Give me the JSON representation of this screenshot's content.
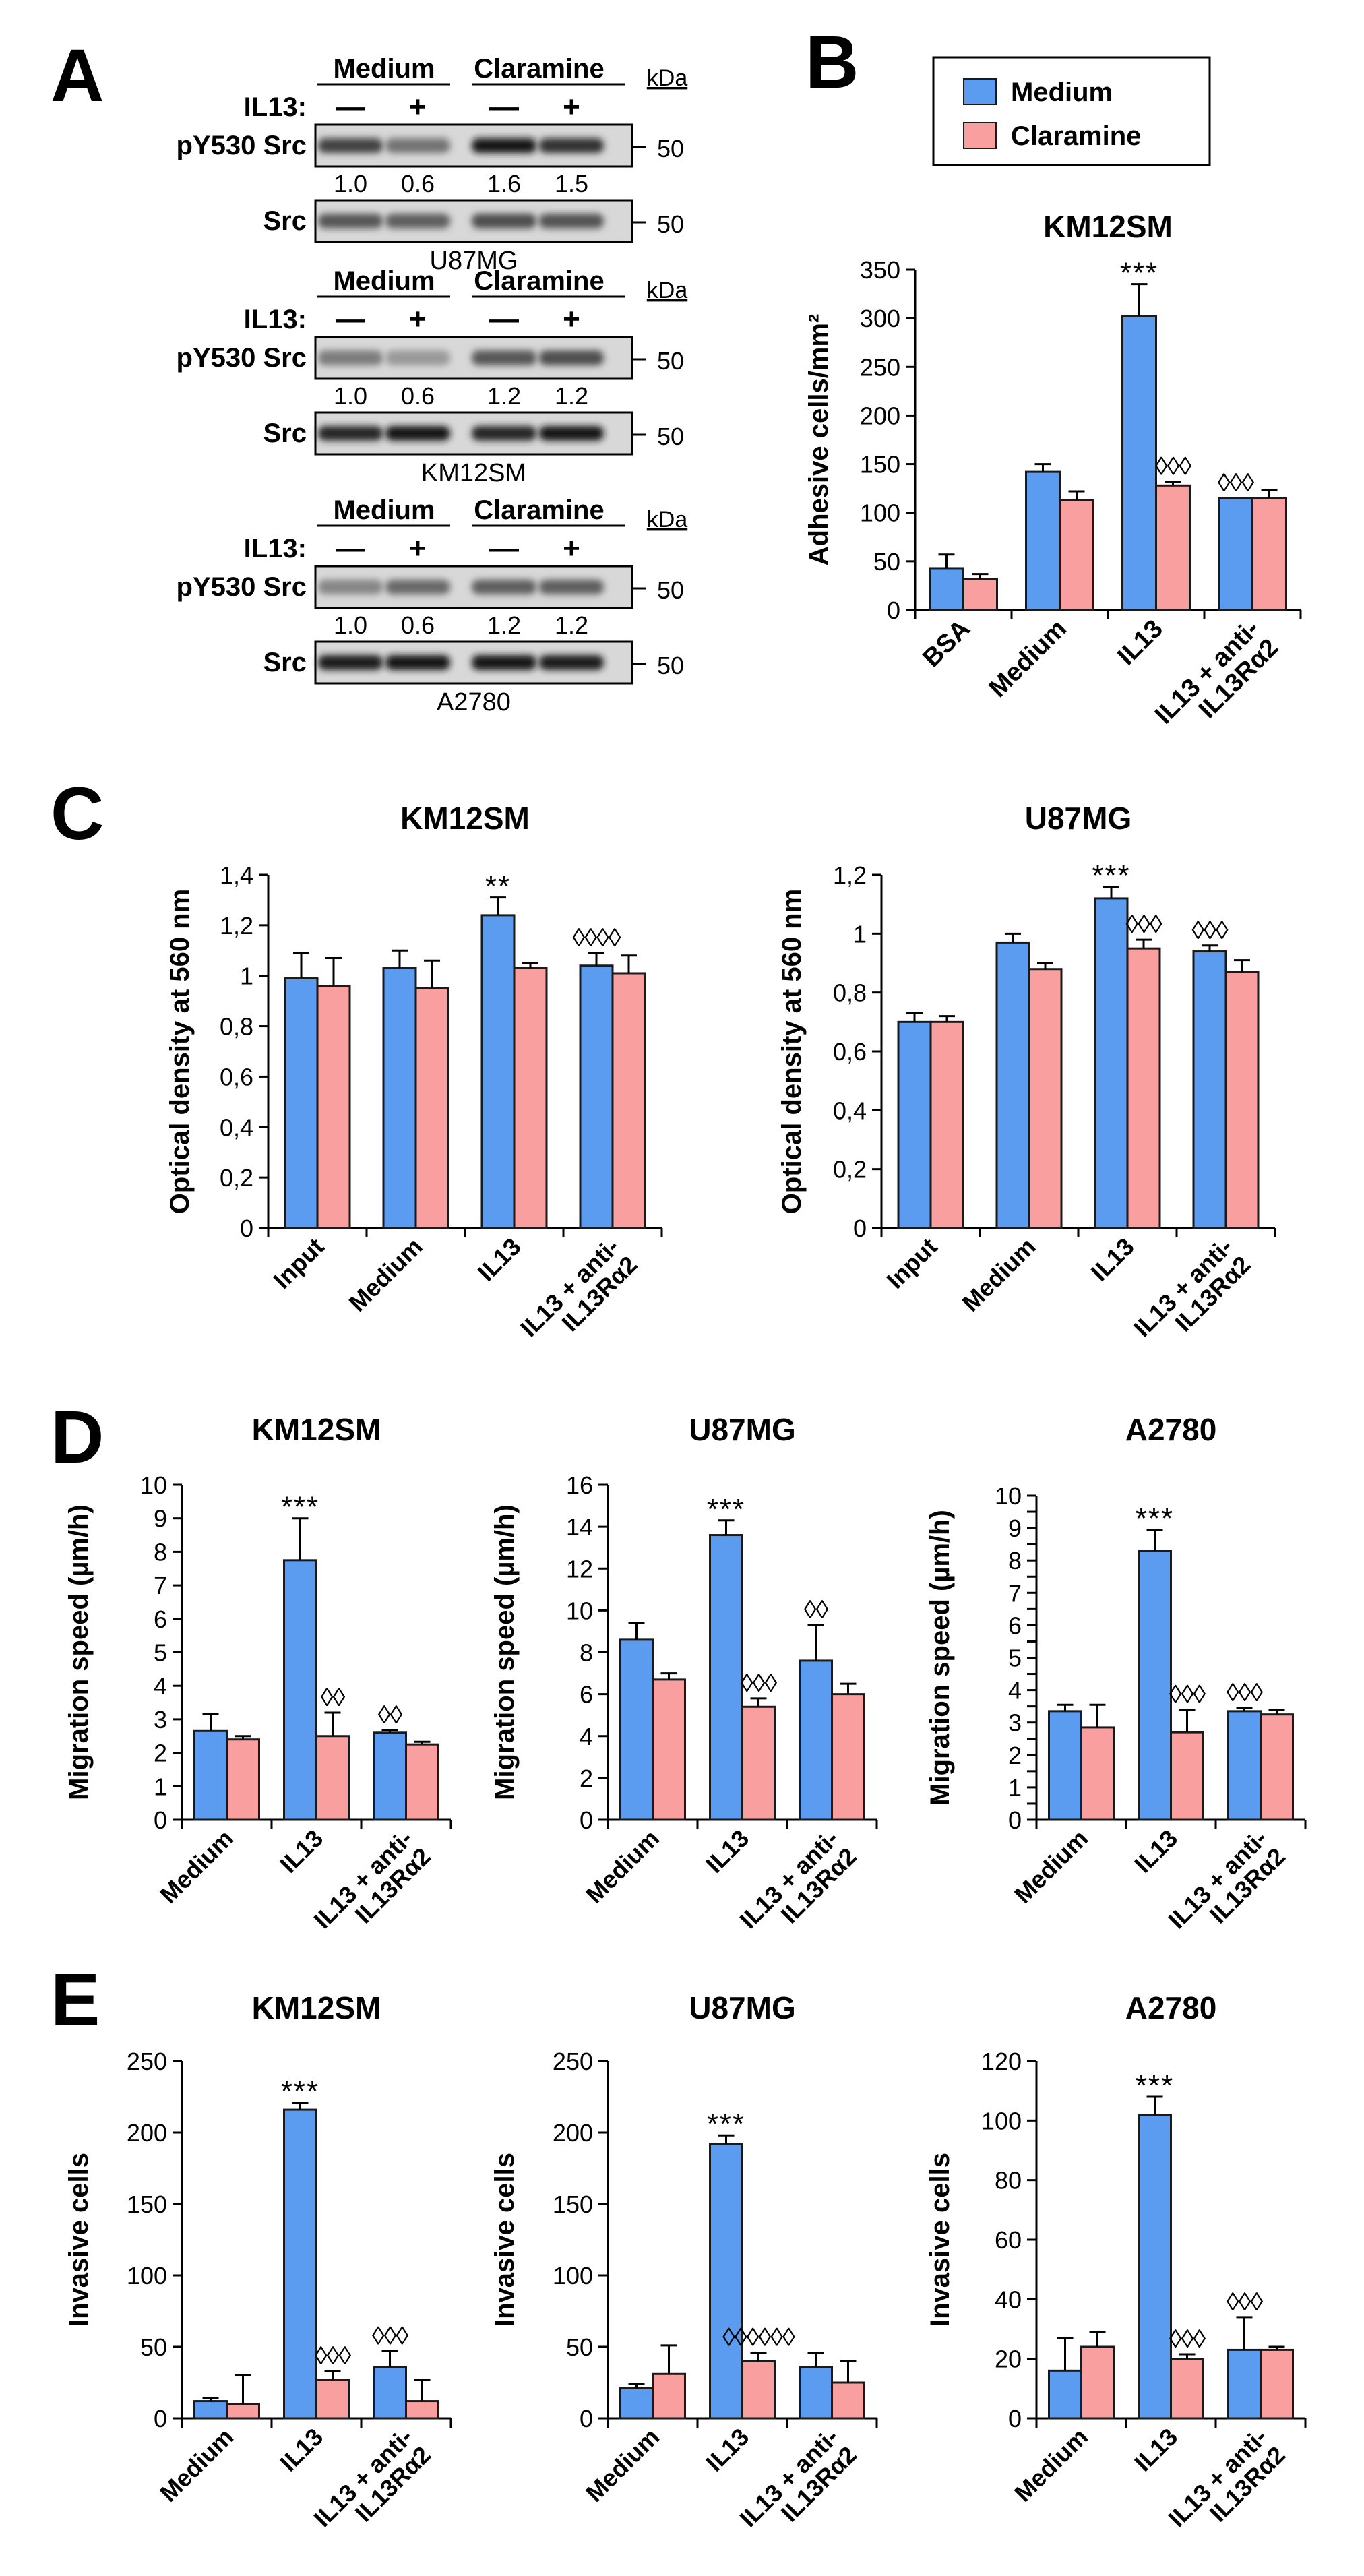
{
  "colors": {
    "medium": "#5b9bf0",
    "claramine": "#f99f9f",
    "outline": "#1a1a1a"
  },
  "panel_labels": [
    "A",
    "B",
    "C",
    "D",
    "E"
  ],
  "legend": {
    "medium": "Medium",
    "claramine": "Claramine"
  },
  "blots": {
    "header_medium": "Medium",
    "header_claramine": "Claramine",
    "kda_label": "kDa",
    "il13_label": "IL13:",
    "lane_marks": [
      "—",
      "+",
      "—",
      "+"
    ],
    "row_label_phospho": "pY530 Src",
    "row_label_total": "Src",
    "marker": "50",
    "groups": [
      {
        "cell_line": "U87MG",
        "ratios": [
          "1.0",
          "0.6",
          "1.6",
          "1.5"
        ]
      },
      {
        "cell_line": "KM12SM",
        "ratios": [
          "1.0",
          "0.6",
          "1.2",
          "1.2"
        ]
      },
      {
        "cell_line": "A2780",
        "ratios": [
          "1.0",
          "0.6",
          "1.2",
          "1.2"
        ]
      }
    ]
  },
  "chart_data": [
    {
      "id": "B",
      "type": "bar",
      "title": "KM12SM",
      "ylabel": "Adhesive cells/mm²",
      "categories": [
        "BSA",
        "Medium",
        "IL13",
        "IL13 + anti-IL13Rα2"
      ],
      "ylim": [
        0,
        350
      ],
      "yticks": [
        "0",
        "50",
        "100",
        "150",
        "200",
        "250",
        "300",
        "350"
      ],
      "series": [
        {
          "name": "Medium",
          "values": [
            43,
            142,
            302,
            115
          ],
          "errors": [
            14,
            8,
            33,
            0
          ]
        },
        {
          "name": "Claramine",
          "values": [
            32,
            113,
            128,
            115
          ],
          "errors": [
            5,
            9,
            4,
            8
          ]
        }
      ],
      "annotations": [
        {
          "category": 2,
          "series": 0,
          "text": "***"
        },
        {
          "category": 2,
          "series": 1,
          "text": "◊◊◊"
        },
        {
          "category": 3,
          "series": 0,
          "text": "◊◊◊"
        }
      ]
    },
    {
      "id": "C1",
      "type": "bar",
      "title": "KM12SM",
      "ylabel": "Optical density at 560 nm",
      "categories": [
        "Input",
        "Medium",
        "IL13",
        "IL13 + anti-IL13Rα2"
      ],
      "ylim": [
        0,
        1.4
      ],
      "yticks": [
        "0",
        "0,2",
        "0,4",
        "0,6",
        "0,8",
        "1",
        "1,2",
        "1,4"
      ],
      "series": [
        {
          "name": "Medium",
          "values": [
            0.99,
            1.03,
            1.24,
            1.04
          ],
          "errors": [
            0.1,
            0.07,
            0.07,
            0.05
          ]
        },
        {
          "name": "Claramine",
          "values": [
            0.96,
            0.95,
            1.03,
            1.01
          ],
          "errors": [
            0.11,
            0.11,
            0.02,
            0.07
          ]
        }
      ],
      "annotations": [
        {
          "category": 2,
          "series": 0,
          "text": "**"
        },
        {
          "category": 3,
          "series": 0,
          "text": "◊◊◊◊"
        }
      ]
    },
    {
      "id": "C2",
      "type": "bar",
      "title": "U87MG",
      "ylabel": "Optical density at 560 nm",
      "categories": [
        "Input",
        "Medium",
        "IL13",
        "IL13 + anti-IL13Rα2"
      ],
      "ylim": [
        0,
        1.2
      ],
      "yticks": [
        "0",
        "0,2",
        "0,4",
        "0,6",
        "0,8",
        "1",
        "1,2"
      ],
      "series": [
        {
          "name": "Medium",
          "values": [
            0.7,
            0.97,
            1.12,
            0.94
          ],
          "errors": [
            0.03,
            0.03,
            0.04,
            0.02
          ]
        },
        {
          "name": "Claramine",
          "values": [
            0.7,
            0.88,
            0.95,
            0.87
          ],
          "errors": [
            0.02,
            0.02,
            0.03,
            0.04
          ]
        }
      ],
      "annotations": [
        {
          "category": 2,
          "series": 0,
          "text": "***"
        },
        {
          "category": 2,
          "series": 1,
          "text": "◊◊◊"
        },
        {
          "category": 3,
          "series": 0,
          "text": "◊◊◊"
        }
      ]
    },
    {
      "id": "D1",
      "type": "bar",
      "title": "KM12SM",
      "ylabel": "Migration speed (µm/h)",
      "categories": [
        "Medium",
        "IL13",
        "IL13 + anti-IL13Rα2"
      ],
      "ylim": [
        0,
        10
      ],
      "yticks": [
        "0",
        "1",
        "2",
        "3",
        "4",
        "5",
        "6",
        "7",
        "8",
        "9",
        "10"
      ],
      "series": [
        {
          "name": "Medium",
          "values": [
            2.65,
            7.75,
            2.6
          ],
          "errors": [
            0.5,
            1.25,
            0.08
          ]
        },
        {
          "name": "Claramine",
          "values": [
            2.4,
            2.5,
            2.25
          ],
          "errors": [
            0.1,
            0.7,
            0.08
          ]
        }
      ],
      "annotations": [
        {
          "category": 1,
          "series": 0,
          "text": "***"
        },
        {
          "category": 1,
          "series": 1,
          "text": "◊◊"
        },
        {
          "category": 2,
          "series": 0,
          "text": "◊◊"
        }
      ]
    },
    {
      "id": "D2",
      "type": "bar",
      "title": "U87MG",
      "ylabel": "Migration speed (µm/h)",
      "categories": [
        "Medium",
        "IL13",
        "IL13 + anti-IL13Rα2"
      ],
      "ylim": [
        0,
        16
      ],
      "yticks": [
        "0",
        "2",
        "4",
        "6",
        "8",
        "10",
        "12",
        "14",
        "16"
      ],
      "series": [
        {
          "name": "Medium",
          "values": [
            8.6,
            13.6,
            7.6
          ],
          "errors": [
            0.8,
            0.7,
            1.7
          ]
        },
        {
          "name": "Claramine",
          "values": [
            6.7,
            5.4,
            6.0
          ],
          "errors": [
            0.3,
            0.4,
            0.5
          ]
        }
      ],
      "annotations": [
        {
          "category": 1,
          "series": 0,
          "text": "***"
        },
        {
          "category": 1,
          "series": 1,
          "text": "◊◊◊"
        },
        {
          "category": 2,
          "series": 0,
          "text": "◊◊"
        }
      ]
    },
    {
      "id": "D3",
      "type": "bar",
      "title": "A2780",
      "ylabel": "Migration speed (µm/h)",
      "categories": [
        "Medium",
        "IL13",
        "IL13 + anti-IL13Rα2"
      ],
      "ylim": [
        0,
        10
      ],
      "yticks": [
        "0",
        "0,5",
        "1",
        "1,5",
        "2",
        "2,5",
        "3",
        "3,5",
        "4",
        "4,5",
        "5",
        "5,5",
        "6",
        "6,5",
        "7",
        "7,5",
        "8",
        "8,5",
        "9",
        "9,5",
        "10"
      ],
      "ytick_labels": [
        "0",
        "1",
        "2",
        "3",
        "4",
        "5",
        "6",
        "7",
        "8",
        "9",
        "10"
      ],
      "series": [
        {
          "name": "Medium",
          "values": [
            3.35,
            8.3,
            3.35
          ],
          "errors": [
            0.2,
            0.65,
            0.1
          ]
        },
        {
          "name": "Claramine",
          "values": [
            2.85,
            2.7,
            3.25
          ],
          "errors": [
            0.7,
            0.7,
            0.15
          ]
        }
      ],
      "annotations": [
        {
          "category": 1,
          "series": 0,
          "text": "***"
        },
        {
          "category": 1,
          "series": 1,
          "text": "◊◊◊"
        },
        {
          "category": 2,
          "series": 0,
          "text": "◊◊◊"
        }
      ]
    },
    {
      "id": "E1",
      "type": "bar",
      "title": "KM12SM",
      "ylabel": "Invasive cells",
      "categories": [
        "Medium",
        "IL13",
        "IL13 + anti-IL13Rα2"
      ],
      "ylim": [
        0,
        250
      ],
      "yticks": [
        "0",
        "50",
        "100",
        "150",
        "200",
        "250"
      ],
      "series": [
        {
          "name": "Medium",
          "values": [
            12,
            216,
            36
          ],
          "errors": [
            2,
            5,
            11
          ]
        },
        {
          "name": "Claramine",
          "values": [
            10,
            27,
            12
          ],
          "errors": [
            20,
            6,
            15
          ]
        }
      ],
      "annotations": [
        {
          "category": 1,
          "series": 0,
          "text": "***"
        },
        {
          "category": 1,
          "series": 1,
          "text": "◊◊◊"
        },
        {
          "category": 2,
          "series": 0,
          "text": "◊◊◊"
        }
      ]
    },
    {
      "id": "E2",
      "type": "bar",
      "title": "U87MG",
      "ylabel": "Invasive cells",
      "categories": [
        "Medium",
        "IL13",
        "IL13 + anti-IL13Rα2"
      ],
      "ylim": [
        0,
        250
      ],
      "yticks": [
        "0",
        "50",
        "100",
        "150",
        "200",
        "250"
      ],
      "series": [
        {
          "name": "Medium",
          "values": [
            21,
            192,
            36
          ],
          "errors": [
            3,
            6,
            10
          ]
        },
        {
          "name": "Claramine",
          "values": [
            31,
            40,
            25
          ],
          "errors": [
            20,
            6,
            15
          ]
        }
      ],
      "annotations": [
        {
          "category": 1,
          "series": 0,
          "text": "***"
        },
        {
          "category": 1,
          "series": 1,
          "text": "◊◊◊◊◊◊"
        }
      ]
    },
    {
      "id": "E3",
      "type": "bar",
      "title": "A2780",
      "ylabel": "Invasive cells",
      "categories": [
        "Medium",
        "IL13",
        "IL13 + anti-IL13Rα2"
      ],
      "ylim": [
        0,
        120
      ],
      "yticks": [
        "0",
        "20",
        "40",
        "60",
        "80",
        "100",
        "120"
      ],
      "series": [
        {
          "name": "Medium",
          "values": [
            16,
            102,
            23
          ],
          "errors": [
            11,
            6,
            11
          ]
        },
        {
          "name": "Claramine",
          "values": [
            24,
            20,
            23
          ],
          "errors": [
            5,
            1.5,
            1
          ]
        }
      ],
      "annotations": [
        {
          "category": 1,
          "series": 0,
          "text": "***"
        },
        {
          "category": 1,
          "series": 1,
          "text": "◊◊◊"
        },
        {
          "category": 2,
          "series": 0,
          "text": "◊◊◊"
        }
      ]
    }
  ]
}
